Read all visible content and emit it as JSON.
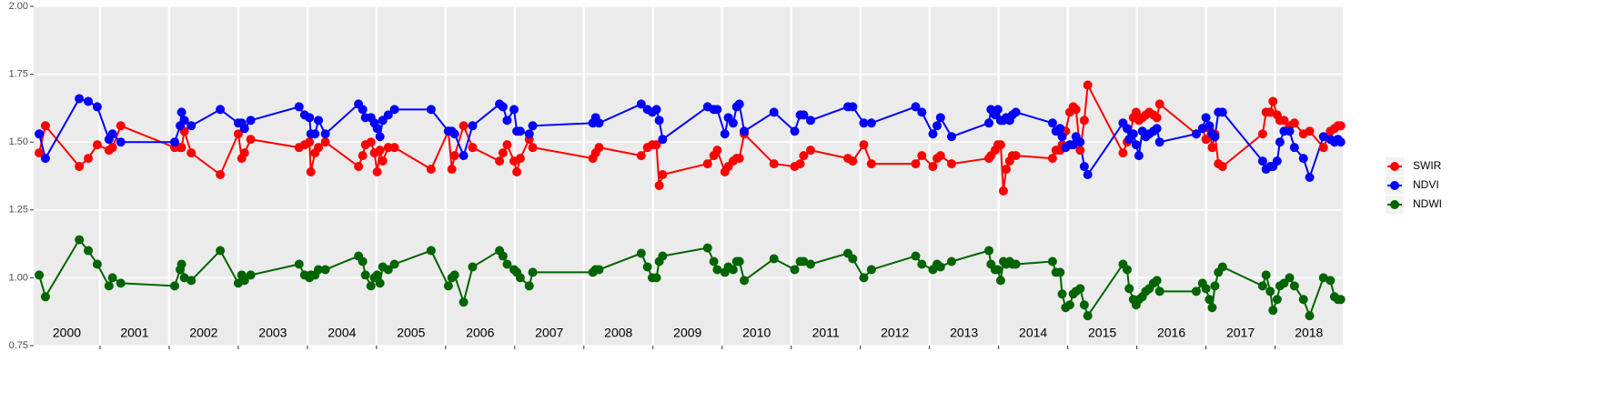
{
  "chart_data": {
    "type": "line",
    "x": [
      2000.12,
      2000.21,
      2000.7,
      2000.83,
      2000.96,
      2001.13,
      2001.18,
      2001.3,
      2002.08,
      2002.16,
      2002.18,
      2002.22,
      2002.32,
      2002.74,
      2003.0,
      2003.05,
      2003.09,
      2003.18,
      2003.88,
      2003.96,
      2004.03,
      2004.05,
      2004.11,
      2004.16,
      2004.26,
      2004.74,
      2004.8,
      2004.84,
      2004.92,
      2004.97,
      2005.01,
      2005.05,
      2005.09,
      2005.17,
      2005.26,
      2005.79,
      2006.04,
      2006.09,
      2006.13,
      2006.26,
      2006.39,
      2006.78,
      2006.83,
      2006.89,
      2006.99,
      2007.03,
      2007.08,
      2007.21,
      2007.26,
      2008.13,
      2008.17,
      2008.22,
      2008.83,
      2008.92,
      2008.99,
      2009.05,
      2009.09,
      2009.14,
      2009.79,
      2009.88,
      2009.93,
      2010.04,
      2010.09,
      2010.16,
      2010.21,
      2010.25,
      2010.32,
      2010.75,
      2011.05,
      2011.13,
      2011.18,
      2011.28,
      2011.82,
      2011.89,
      2012.05,
      2012.16,
      2012.8,
      2012.89,
      2013.05,
      2013.11,
      2013.16,
      2013.32,
      2013.86,
      2013.89,
      2013.95,
      2013.99,
      2014.03,
      2014.07,
      2014.11,
      2014.16,
      2014.2,
      2014.25,
      2014.78,
      2014.83,
      2014.89,
      2014.92,
      2014.97,
      2015.03,
      2015.08,
      2015.12,
      2015.18,
      2015.24,
      2015.29,
      2015.8,
      2015.86,
      2015.89,
      2015.95,
      2015.99,
      2016.03,
      2016.08,
      2016.13,
      2016.18,
      2016.24,
      2016.29,
      2016.33,
      2016.86,
      2016.95,
      2017.0,
      2017.05,
      2017.09,
      2017.13,
      2017.18,
      2017.24,
      2017.82,
      2017.87,
      2017.93,
      2017.97,
      2018.03,
      2018.07,
      2018.13,
      2018.21,
      2018.28,
      2018.41,
      2018.5,
      2018.7,
      2018.8,
      2018.86,
      2018.91,
      2018.95
    ],
    "series": [
      {
        "name": "SWIR",
        "color": "#ff0000",
        "values": [
          1.46,
          1.56,
          1.41,
          1.44,
          1.49,
          1.47,
          1.48,
          1.56,
          1.48,
          1.48,
          1.48,
          1.54,
          1.46,
          1.38,
          1.53,
          1.44,
          1.46,
          1.51,
          1.48,
          1.49,
          1.5,
          1.39,
          1.46,
          1.48,
          1.5,
          1.41,
          1.45,
          1.49,
          1.5,
          1.46,
          1.39,
          1.47,
          1.43,
          1.48,
          1.48,
          1.4,
          1.54,
          1.4,
          1.45,
          1.56,
          1.48,
          1.43,
          1.46,
          1.49,
          1.43,
          1.39,
          1.44,
          1.51,
          1.48,
          1.44,
          1.46,
          1.48,
          1.45,
          1.48,
          1.49,
          1.49,
          1.34,
          1.38,
          1.42,
          1.45,
          1.47,
          1.39,
          1.41,
          1.43,
          1.44,
          1.44,
          1.53,
          1.42,
          1.41,
          1.42,
          1.45,
          1.47,
          1.44,
          1.43,
          1.49,
          1.42,
          1.42,
          1.45,
          1.41,
          1.44,
          1.45,
          1.42,
          1.44,
          1.45,
          1.47,
          1.49,
          1.49,
          1.32,
          1.4,
          1.43,
          1.45,
          1.45,
          1.44,
          1.47,
          1.47,
          1.49,
          1.54,
          1.61,
          1.63,
          1.62,
          1.47,
          1.58,
          1.71,
          1.46,
          1.5,
          1.51,
          1.59,
          1.61,
          1.58,
          1.59,
          1.6,
          1.61,
          1.6,
          1.59,
          1.64,
          1.53,
          1.55,
          1.51,
          1.55,
          1.48,
          1.53,
          1.42,
          1.41,
          1.53,
          1.61,
          1.61,
          1.65,
          1.6,
          1.58,
          1.58,
          1.56,
          1.57,
          1.53,
          1.54,
          1.48,
          1.54,
          1.55,
          1.56,
          1.56
        ]
      },
      {
        "name": "NDVI",
        "color": "#0000ff",
        "values": [
          1.53,
          1.44,
          1.66,
          1.65,
          1.63,
          1.51,
          1.53,
          1.5,
          1.5,
          1.56,
          1.61,
          1.58,
          1.56,
          1.62,
          1.57,
          1.57,
          1.55,
          1.58,
          1.63,
          1.6,
          1.59,
          1.53,
          1.53,
          1.58,
          1.53,
          1.64,
          1.62,
          1.59,
          1.59,
          1.57,
          1.55,
          1.52,
          1.58,
          1.6,
          1.62,
          1.62,
          1.54,
          1.54,
          1.53,
          1.45,
          1.56,
          1.64,
          1.63,
          1.58,
          1.62,
          1.54,
          1.54,
          1.53,
          1.56,
          1.57,
          1.59,
          1.57,
          1.64,
          1.62,
          1.61,
          1.62,
          1.58,
          1.51,
          1.63,
          1.62,
          1.62,
          1.53,
          1.59,
          1.57,
          1.63,
          1.64,
          1.54,
          1.61,
          1.54,
          1.6,
          1.6,
          1.58,
          1.63,
          1.63,
          1.57,
          1.57,
          1.63,
          1.61,
          1.53,
          1.56,
          1.59,
          1.52,
          1.57,
          1.62,
          1.6,
          1.62,
          1.58,
          1.58,
          1.59,
          1.58,
          1.6,
          1.61,
          1.57,
          1.54,
          1.55,
          1.52,
          1.48,
          1.49,
          1.49,
          1.52,
          1.5,
          1.41,
          1.38,
          1.57,
          1.55,
          1.51,
          1.53,
          1.49,
          1.45,
          1.54,
          1.52,
          1.53,
          1.54,
          1.55,
          1.5,
          1.53,
          1.55,
          1.59,
          1.56,
          1.53,
          1.52,
          1.61,
          1.61,
          1.43,
          1.4,
          1.41,
          1.41,
          1.43,
          1.5,
          1.54,
          1.54,
          1.48,
          1.44,
          1.37,
          1.52,
          1.51,
          1.5,
          1.51,
          1.5
        ]
      },
      {
        "name": "NDWI",
        "color": "#006400",
        "values": [
          1.01,
          0.93,
          1.14,
          1.1,
          1.05,
          0.97,
          1.0,
          0.98,
          0.97,
          1.03,
          1.05,
          1.0,
          0.99,
          1.1,
          0.98,
          1.01,
          0.99,
          1.01,
          1.05,
          1.01,
          1.0,
          1.01,
          1.01,
          1.03,
          1.03,
          1.08,
          1.06,
          1.01,
          0.97,
          1.0,
          1.01,
          0.98,
          1.04,
          1.03,
          1.05,
          1.1,
          0.97,
          1.0,
          1.01,
          0.91,
          1.04,
          1.1,
          1.08,
          1.05,
          1.03,
          1.02,
          1.0,
          0.97,
          1.02,
          1.02,
          1.03,
          1.03,
          1.09,
          1.04,
          1.0,
          1.0,
          1.06,
          1.08,
          1.11,
          1.06,
          1.03,
          1.02,
          1.04,
          1.03,
          1.06,
          1.06,
          0.99,
          1.07,
          1.03,
          1.06,
          1.06,
          1.05,
          1.09,
          1.07,
          1.0,
          1.03,
          1.08,
          1.05,
          1.03,
          1.05,
          1.04,
          1.06,
          1.1,
          1.05,
          1.03,
          1.03,
          0.99,
          1.06,
          1.05,
          1.06,
          1.05,
          1.05,
          1.06,
          1.02,
          1.02,
          0.94,
          0.89,
          0.9,
          0.94,
          0.95,
          0.96,
          0.9,
          0.86,
          1.05,
          1.03,
          0.96,
          0.92,
          0.9,
          0.92,
          0.93,
          0.95,
          0.96,
          0.98,
          0.99,
          0.95,
          0.95,
          0.98,
          0.96,
          0.92,
          0.89,
          0.97,
          1.02,
          1.04,
          0.97,
          1.01,
          0.95,
          0.88,
          0.92,
          0.97,
          0.98,
          1.0,
          0.97,
          0.92,
          0.86,
          1.0,
          0.99,
          0.93,
          0.92,
          0.92
        ]
      }
    ],
    "year_labels": [
      "2000",
      "2001",
      "2002",
      "2003",
      "2004",
      "2005",
      "2006",
      "2007",
      "2008",
      "2009",
      "2010",
      "2011",
      "2012",
      "2013",
      "2014",
      "2015",
      "2016",
      "2017",
      "2018"
    ],
    "xlim": [
      2000.04,
      2018.98
    ],
    "xticks": [
      2001,
      2002,
      2003,
      2004,
      2005,
      2006,
      2007,
      2008,
      2009,
      2010,
      2011,
      2012,
      2013,
      2014,
      2015,
      2016,
      2017,
      2018
    ],
    "ylim": [
      0.75,
      2.0
    ],
    "yticks": [
      0.75,
      {
        "value": 1,
        "label": "1.00"
      },
      1.25,
      {
        "value": 1.5,
        "label": "1.50"
      },
      1.75,
      {
        "value": 2,
        "label": "2.00"
      }
    ],
    "grid": true,
    "legend": "right"
  }
}
